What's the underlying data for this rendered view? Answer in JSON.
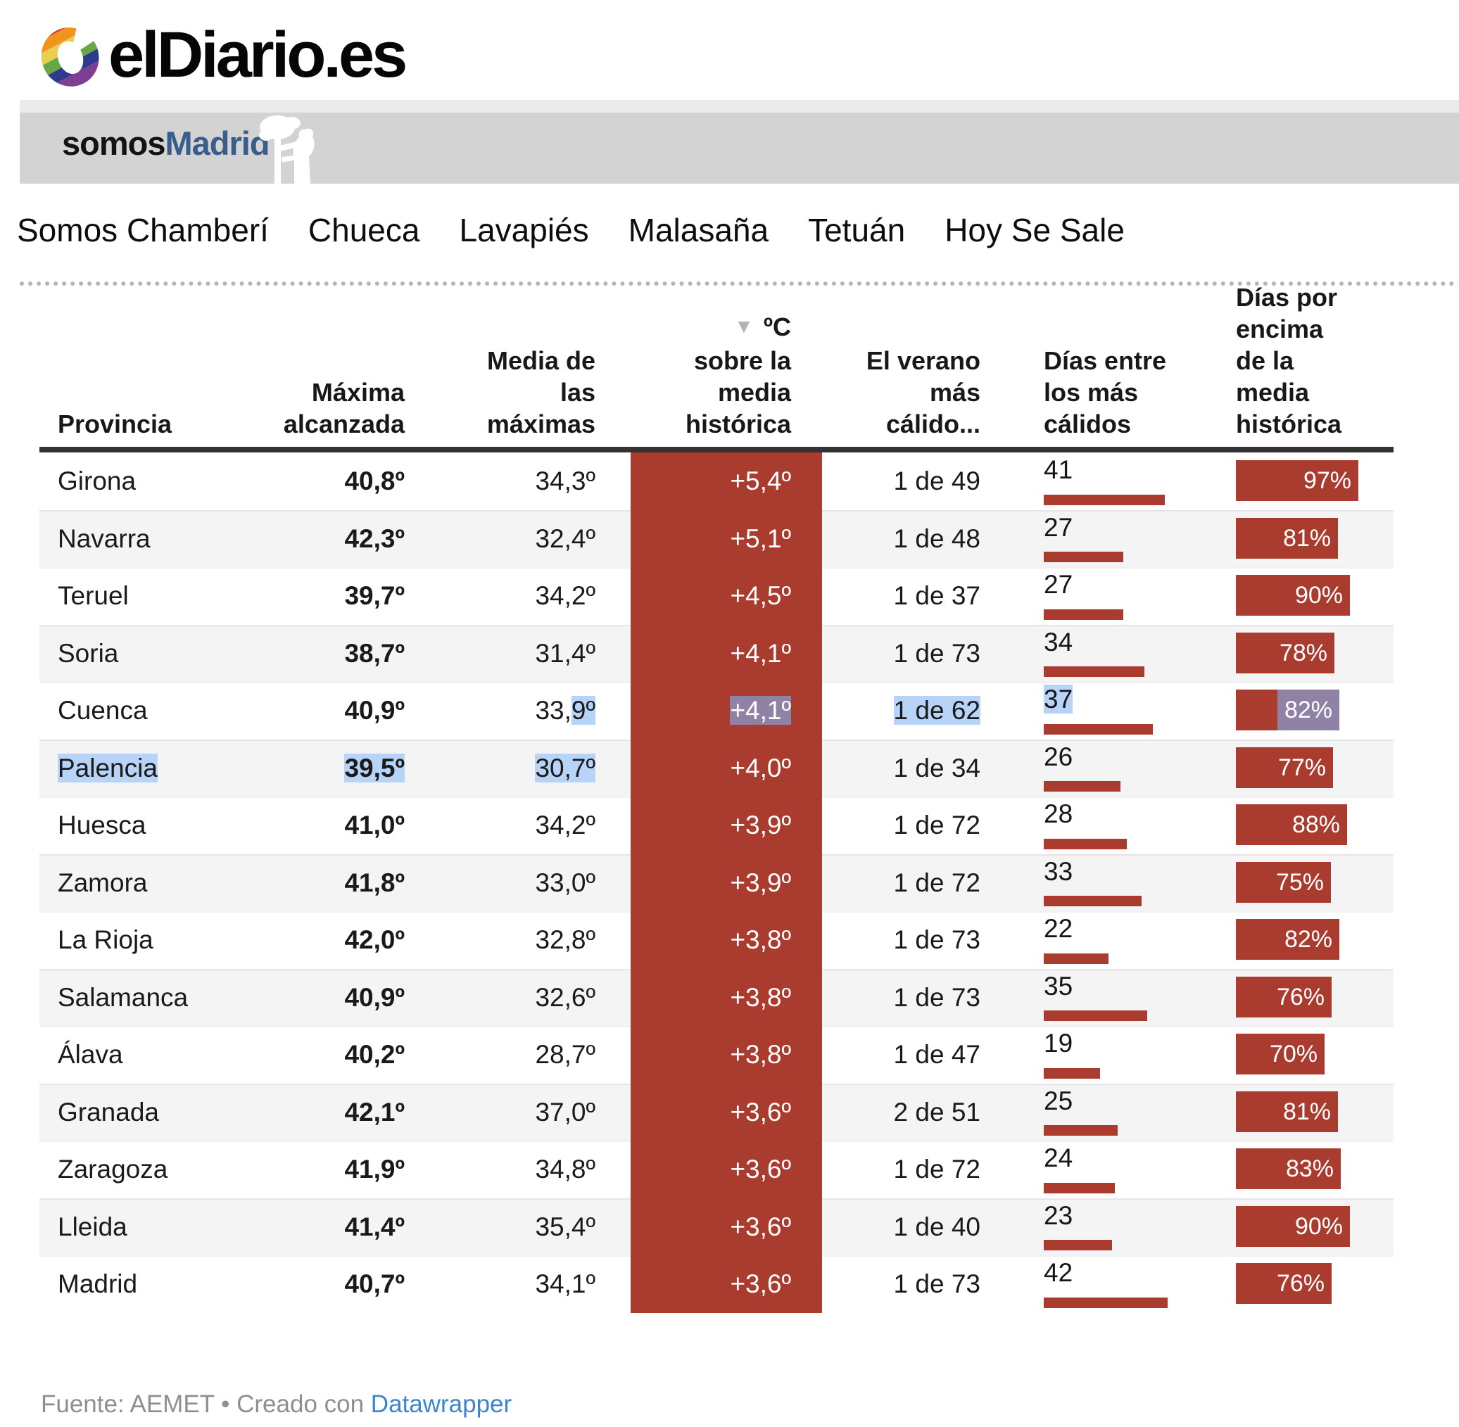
{
  "masthead": {
    "logo_text": "elDiario.es"
  },
  "banner": {
    "brand_black": "somos",
    "brand_blue": "Madrid"
  },
  "nav": {
    "items": [
      "Somos Chamberí",
      "Chueca",
      "Lavapiés",
      "Malasaña",
      "Tetuán",
      "Hoy Se Sale"
    ]
  },
  "table": {
    "sort_icon": "▼",
    "columns": [
      {
        "key": "provincia",
        "lines": [
          "Provincia"
        ]
      },
      {
        "key": "maxima",
        "lines": [
          "Máxima",
          "alcanzada"
        ]
      },
      {
        "key": "media",
        "lines": [
          "Media de",
          "las",
          "máximas"
        ]
      },
      {
        "key": "delta",
        "lines": [
          "ºC",
          "sobre la",
          "media",
          "histórica"
        ],
        "sorted": true
      },
      {
        "key": "verano",
        "lines": [
          "El verano",
          "más",
          "cálido..."
        ]
      },
      {
        "key": "dias",
        "lines": [
          "Días entre",
          "los más",
          "cálidos"
        ]
      },
      {
        "key": "pct",
        "lines": [
          "Días por",
          "encima",
          "de la",
          "media",
          "histórica"
        ]
      }
    ],
    "rows": [
      {
        "provincia": "Girona",
        "maxima": "40,8º",
        "media": "34,3º",
        "delta": "+5,4º",
        "verano": "1 de 49",
        "dias": 41,
        "pct": 97,
        "sel": []
      },
      {
        "provincia": "Navarra",
        "maxima": "42,3º",
        "media": "32,4º",
        "delta": "+5,1º",
        "verano": "1 de 48",
        "dias": 27,
        "pct": 81,
        "sel": []
      },
      {
        "provincia": "Teruel",
        "maxima": "39,7º",
        "media": "34,2º",
        "delta": "+4,5º",
        "verano": "1 de 37",
        "dias": 27,
        "pct": 90,
        "sel": []
      },
      {
        "provincia": "Soria",
        "maxima": "38,7º",
        "media": "31,4º",
        "delta": "+4,1º",
        "verano": "1 de 73",
        "dias": 34,
        "pct": 78,
        "sel": []
      },
      {
        "provincia": "Cuenca",
        "maxima": "40,9º",
        "media": "33,9º",
        "delta": "+4,1º",
        "verano": "1 de 62",
        "dias": 37,
        "pct": 82,
        "sel": [
          "media_part",
          "delta",
          "verano",
          "dias",
          "pct"
        ]
      },
      {
        "provincia": "Palencia",
        "maxima": "39,5º",
        "media": "30,7º",
        "delta": "+4,0º",
        "verano": "1 de 34",
        "dias": 26,
        "pct": 77,
        "sel": [
          "provincia",
          "maxima",
          "media"
        ]
      },
      {
        "provincia": "Huesca",
        "maxima": "41,0º",
        "media": "34,2º",
        "delta": "+3,9º",
        "verano": "1 de 72",
        "dias": 28,
        "pct": 88,
        "sel": []
      },
      {
        "provincia": "Zamora",
        "maxima": "41,8º",
        "media": "33,0º",
        "delta": "+3,9º",
        "verano": "1 de 72",
        "dias": 33,
        "pct": 75,
        "sel": []
      },
      {
        "provincia": "La Rioja",
        "maxima": "42,0º",
        "media": "32,8º",
        "delta": "+3,8º",
        "verano": "1 de 73",
        "dias": 22,
        "pct": 82,
        "sel": []
      },
      {
        "provincia": "Salamanca",
        "maxima": "40,9º",
        "media": "32,6º",
        "delta": "+3,8º",
        "verano": "1 de 73",
        "dias": 35,
        "pct": 76,
        "sel": []
      },
      {
        "provincia": "Álava",
        "maxima": "40,2º",
        "media": "28,7º",
        "delta": "+3,8º",
        "verano": "1 de 47",
        "dias": 19,
        "pct": 70,
        "sel": []
      },
      {
        "provincia": "Granada",
        "maxima": "42,1º",
        "media": "37,0º",
        "delta": "+3,6º",
        "verano": "2 de 51",
        "dias": 25,
        "pct": 81,
        "sel": []
      },
      {
        "provincia": "Zaragoza",
        "maxima": "41,9º",
        "media": "34,8º",
        "delta": "+3,6º",
        "verano": "1 de 72",
        "dias": 24,
        "pct": 83,
        "sel": []
      },
      {
        "provincia": "Lleida",
        "maxima": "41,4º",
        "media": "35,4º",
        "delta": "+3,6º",
        "verano": "1 de 40",
        "dias": 23,
        "pct": 90,
        "sel": []
      },
      {
        "provincia": "Madrid",
        "maxima": "40,7º",
        "media": "34,1º",
        "delta": "+3,6º",
        "verano": "1 de 73",
        "dias": 42,
        "pct": 76,
        "sel": []
      }
    ]
  },
  "footer": {
    "prefix": "Fuente: AEMET • Creado con ",
    "link": "Datawrapper"
  },
  "colors": {
    "accent_red": "#aa3c2f",
    "row_alt": "#f4f4f4",
    "selection_blue": "#b7d3f8",
    "selection_over_red": "#8f82a4",
    "banner_gray": "#d3d3d3",
    "brand_blue": "#3a5e8c",
    "link_blue": "#3d85d0"
  },
  "chart_data": {
    "type": "table",
    "title": "",
    "columns": [
      "Provincia",
      "Máxima alcanzada",
      "Media de las máximas",
      "ºC sobre la media histórica",
      "El verano más cálido...",
      "Días entre los más cálidos",
      "Días por encima de la media histórica"
    ],
    "categories": [
      "Girona",
      "Navarra",
      "Teruel",
      "Soria",
      "Cuenca",
      "Palencia",
      "Huesca",
      "Zamora",
      "La Rioja",
      "Salamanca",
      "Álava",
      "Granada",
      "Zaragoza",
      "Lleida",
      "Madrid"
    ],
    "series": [
      {
        "name": "Máxima alcanzada (ºC)",
        "values": [
          40.8,
          42.3,
          39.7,
          38.7,
          40.9,
          39.5,
          41.0,
          41.8,
          42.0,
          40.9,
          40.2,
          42.1,
          41.9,
          41.4,
          40.7
        ]
      },
      {
        "name": "Media de las máximas (ºC)",
        "values": [
          34.3,
          32.4,
          34.2,
          31.4,
          33.9,
          30.7,
          34.2,
          33.0,
          32.8,
          32.6,
          28.7,
          37.0,
          34.8,
          35.4,
          34.1
        ]
      },
      {
        "name": "ºC sobre la media histórica",
        "values": [
          5.4,
          5.1,
          4.5,
          4.1,
          4.1,
          4.0,
          3.9,
          3.9,
          3.8,
          3.8,
          3.8,
          3.6,
          3.6,
          3.6,
          3.6
        ]
      },
      {
        "name": "El verano más cálido...",
        "values": [
          "1 de 49",
          "1 de 48",
          "1 de 37",
          "1 de 73",
          "1 de 62",
          "1 de 34",
          "1 de 72",
          "1 de 72",
          "1 de 73",
          "1 de 73",
          "1 de 47",
          "2 de 51",
          "1 de 72",
          "1 de 40",
          "1 de 73"
        ]
      },
      {
        "name": "Días entre los más cálidos",
        "values": [
          41,
          27,
          27,
          34,
          37,
          26,
          28,
          33,
          22,
          35,
          19,
          25,
          24,
          23,
          42
        ]
      },
      {
        "name": "Días por encima de la media histórica (%)",
        "values": [
          97,
          81,
          90,
          78,
          82,
          77,
          88,
          75,
          82,
          76,
          70,
          81,
          83,
          90,
          76
        ]
      }
    ],
    "sorted_by": "ºC sobre la media histórica (desc)",
    "source": "Fuente: AEMET • Creado con Datawrapper"
  }
}
